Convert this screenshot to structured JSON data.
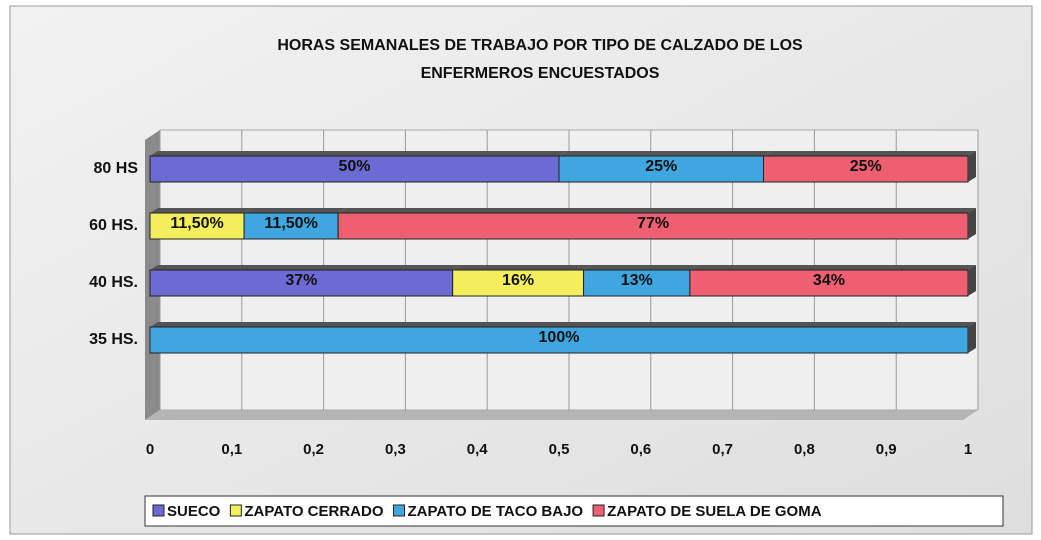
{
  "chart_data": {
    "type": "stacked-bar-horizontal",
    "title": [
      "HORAS SEMANALES DE TRABAJO POR TIPO DE CALZADO DE LOS",
      "ENFERMEROS ENCUESTADOS"
    ],
    "categories": [
      "35 HS.",
      "40 HS.",
      "60 HS.",
      "80 HS"
    ],
    "series": [
      {
        "name": "SUECO",
        "color": "#6b6bd3",
        "values": [
          0,
          0.37,
          0,
          0.5
        ],
        "value_labels": [
          null,
          "37%",
          null,
          "50%"
        ]
      },
      {
        "name": "ZAPATO CERRADO",
        "color": "#f5ee5c",
        "values": [
          0,
          0.16,
          0.115,
          0
        ],
        "value_labels": [
          null,
          "16%",
          "11,50%",
          null
        ]
      },
      {
        "name": "ZAPATO DE TACO BAJO",
        "color": "#3fa6df",
        "values": [
          1,
          0.13,
          0.115,
          0.25
        ],
        "value_labels": [
          "100%",
          "13%",
          "11,50%",
          "25%"
        ]
      },
      {
        "name": "ZAPATO DE SUELA DE GOMA",
        "color": "#ef5f72",
        "values": [
          0,
          0.34,
          0.77,
          0.25
        ],
        "value_labels": [
          null,
          "34%",
          "77%",
          "25%"
        ]
      }
    ],
    "xlim": [
      0,
      1
    ],
    "xticks": [
      0,
      {
        "value": 0.1,
        "label": "0,1"
      },
      {
        "value": 0.2,
        "label": "0,2"
      },
      {
        "value": 0.3,
        "label": "0,3"
      },
      {
        "value": 0.4,
        "label": "0,4"
      },
      {
        "value": 0.5,
        "label": "0,5"
      },
      {
        "value": 0.6,
        "label": "0,6"
      },
      {
        "value": 0.7,
        "label": "0,7"
      },
      {
        "value": 0.8,
        "label": "0,8"
      },
      {
        "value": 0.9,
        "label": "0,9"
      },
      1
    ],
    "grid": true,
    "legend": "bottom"
  }
}
